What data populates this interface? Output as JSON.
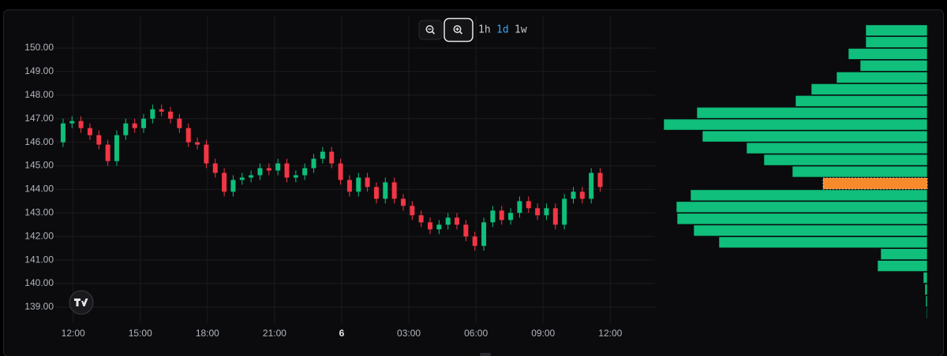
{
  "chart_data": {
    "type": "candlestick",
    "toolbar": {
      "intervals": [
        "1h",
        "1d",
        "1w"
      ],
      "active_interval": 1
    },
    "x": [
      -0.45,
      -0.05,
      0.35,
      0.75,
      1.15,
      1.55,
      1.95,
      2.35,
      2.75,
      3.15,
      3.55,
      3.95,
      4.35,
      4.75,
      5.15,
      5.55,
      5.95,
      6.35,
      6.75,
      7.15,
      7.55,
      7.95,
      8.35,
      8.75,
      9.15,
      9.55,
      9.95,
      10.35,
      10.75,
      11.15,
      11.55,
      11.95,
      12.35,
      12.75,
      13.15,
      13.55,
      13.95,
      14.35,
      14.75,
      15.15,
      15.55,
      15.95,
      16.35,
      16.75,
      17.15,
      17.55,
      17.95,
      18.35,
      18.75,
      19.15,
      19.55,
      19.95,
      20.35,
      20.75,
      21.15,
      21.55,
      21.95,
      22.35,
      22.75,
      23.15,
      23.55
    ],
    "open": [
      146.0,
      146.8,
      146.9,
      146.6,
      146.3,
      145.9,
      145.2,
      146.3,
      146.8,
      146.6,
      147.0,
      147.4,
      147.3,
      147.0,
      146.6,
      146.0,
      145.9,
      145.1,
      144.7,
      143.9,
      144.4,
      144.5,
      144.6,
      144.9,
      144.8,
      145.1,
      144.5,
      144.6,
      144.9,
      145.3,
      145.6,
      145.1,
      144.4,
      143.9,
      144.5,
      144.1,
      143.6,
      144.3,
      143.6,
      143.3,
      142.9,
      142.6,
      142.3,
      142.5,
      142.8,
      142.5,
      142.0,
      141.6,
      142.6,
      143.1,
      142.7,
      143.0,
      143.5,
      143.2,
      142.9,
      143.2,
      142.5,
      143.6,
      143.9,
      143.6,
      144.7
    ],
    "high": [
      147.0,
      147.1,
      147.1,
      146.8,
      146.5,
      146.1,
      146.5,
      147.0,
      147.0,
      147.2,
      147.6,
      147.6,
      147.5,
      147.2,
      146.8,
      146.2,
      146.1,
      145.3,
      144.9,
      144.6,
      144.7,
      144.8,
      145.1,
      145.1,
      145.3,
      145.3,
      144.8,
      145.1,
      145.5,
      145.8,
      145.8,
      145.3,
      144.6,
      144.7,
      144.7,
      144.3,
      144.5,
      144.5,
      143.8,
      143.5,
      143.1,
      142.8,
      142.7,
      143.0,
      143.0,
      142.7,
      142.2,
      142.8,
      143.3,
      143.3,
      143.2,
      143.7,
      143.7,
      143.4,
      143.4,
      143.4,
      143.8,
      144.1,
      144.1,
      144.9,
      144.9
    ],
    "low": [
      145.8,
      146.6,
      146.4,
      146.1,
      145.7,
      145.0,
      145.0,
      146.1,
      146.4,
      146.4,
      146.8,
      147.1,
      146.8,
      146.4,
      145.8,
      145.7,
      144.9,
      144.5,
      143.7,
      143.7,
      144.2,
      144.3,
      144.4,
      144.6,
      144.6,
      144.3,
      144.3,
      144.4,
      144.7,
      145.1,
      144.9,
      144.2,
      143.7,
      143.7,
      143.9,
      143.4,
      143.4,
      143.4,
      143.1,
      142.7,
      142.4,
      142.1,
      142.1,
      142.3,
      142.3,
      141.8,
      141.4,
      141.4,
      142.4,
      142.5,
      142.5,
      142.8,
      143.0,
      142.7,
      142.7,
      142.3,
      142.3,
      143.4,
      143.4,
      143.4,
      143.9
    ],
    "close": [
      146.8,
      146.9,
      146.6,
      146.3,
      145.9,
      145.2,
      146.3,
      146.8,
      146.6,
      147.0,
      147.4,
      147.3,
      147.0,
      146.6,
      146.0,
      145.9,
      145.1,
      144.7,
      143.9,
      144.4,
      144.5,
      144.6,
      144.9,
      144.8,
      145.1,
      144.5,
      144.6,
      144.9,
      145.3,
      145.6,
      145.1,
      144.4,
      143.9,
      144.5,
      144.1,
      143.6,
      144.3,
      143.6,
      143.3,
      142.9,
      142.6,
      142.3,
      142.5,
      142.8,
      142.5,
      142.0,
      141.6,
      142.6,
      143.1,
      142.7,
      143.0,
      143.5,
      143.2,
      142.9,
      143.2,
      142.5,
      143.6,
      143.9,
      143.6,
      144.7,
      144.1
    ],
    "up_color": "#0fbf7b",
    "down_color": "#f23645",
    "xlim": [
      -0.8,
      26
    ],
    "xticks": [
      {
        "value": 0,
        "label": "12:00"
      },
      {
        "value": 3,
        "label": "15:00"
      },
      {
        "value": 6,
        "label": "18:00"
      },
      {
        "value": 9,
        "label": "21:00"
      },
      {
        "value": 12,
        "label": "6"
      },
      {
        "value": 15,
        "label": "03:00"
      },
      {
        "value": 18,
        "label": "06:00"
      },
      {
        "value": 21,
        "label": "09:00"
      },
      {
        "value": 24,
        "label": "12:00"
      }
    ],
    "ylim": [
      138.33,
      151.37
    ],
    "yticks": [
      {
        "value": 150,
        "label": "150.00"
      },
      {
        "value": 149,
        "label": "149.00"
      },
      {
        "value": 148,
        "label": "148.00"
      },
      {
        "value": 147,
        "label": "147.00"
      },
      {
        "value": 146,
        "label": "146.00"
      },
      {
        "value": 145,
        "label": "145.00"
      },
      {
        "value": 144,
        "label": "144.00"
      },
      {
        "value": 143,
        "label": "143.00"
      },
      {
        "value": 142,
        "label": "142.00"
      },
      {
        "value": 141,
        "label": "141.00"
      },
      {
        "value": 140,
        "label": "140.00"
      },
      {
        "value": 139,
        "label": "139.00"
      }
    ],
    "grid": true,
    "volume_profile": {
      "levels": [
        150.75,
        150.25,
        149.75,
        149.25,
        148.75,
        148.25,
        147.75,
        147.25,
        146.75,
        146.25,
        145.75,
        145.25,
        144.75,
        144.25,
        143.75,
        143.25,
        142.75,
        142.25,
        141.75,
        141.25,
        140.75,
        140.25,
        139.75,
        139.25,
        138.75
      ],
      "volumes": [
        78,
        78,
        100,
        85,
        115,
        147,
        167,
        292,
        334,
        285,
        229,
        207,
        171,
        132,
        300,
        318,
        317,
        296,
        264,
        59,
        63,
        5,
        3,
        2,
        1
      ],
      "xlim": [
        0,
        335
      ],
      "color": "#0fbf7b",
      "highlight_index": 13,
      "highlight_color": "#f78a2a"
    }
  }
}
